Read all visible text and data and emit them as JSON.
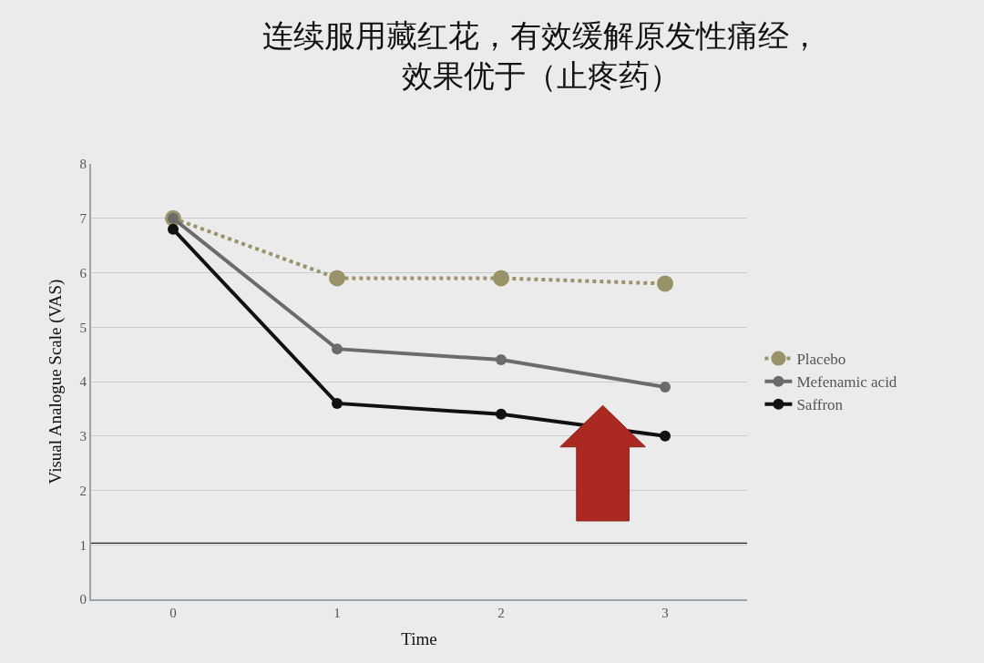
{
  "chart_data": {
    "type": "line",
    "title": "连续服用藏红花，有效缓解原发性痛经，效果优于（止疼药）",
    "xlabel": "Time",
    "ylabel": "Visual Analogue Scale (VAS)",
    "x": [
      0,
      1,
      2,
      3
    ],
    "xlim": [
      -0.5,
      3.5
    ],
    "xticks": [
      0,
      1,
      2,
      3
    ],
    "ylim": [
      0,
      8
    ],
    "yticks": [
      0,
      1,
      2,
      3,
      4,
      5,
      6,
      7,
      8
    ],
    "series": [
      {
        "name": "Placebo",
        "color": "#9a9268",
        "values": [
          7,
          5.9,
          5.9,
          5.8
        ],
        "line_style": "dotted"
      },
      {
        "name": "Mefenamic acid",
        "color": "#6b6b6b",
        "values": [
          7,
          4.6,
          4.4,
          3.9
        ],
        "line_style": "solid"
      },
      {
        "name": "Saffron",
        "color": "#111111",
        "values": [
          6.8,
          3.6,
          3.4,
          3.0
        ],
        "line_style": "solid"
      }
    ],
    "ref_lines": [
      {
        "axis": "y",
        "value": 1.03,
        "color": "#222222"
      }
    ],
    "marker": "circle",
    "grid": "y",
    "legend": "right"
  }
}
